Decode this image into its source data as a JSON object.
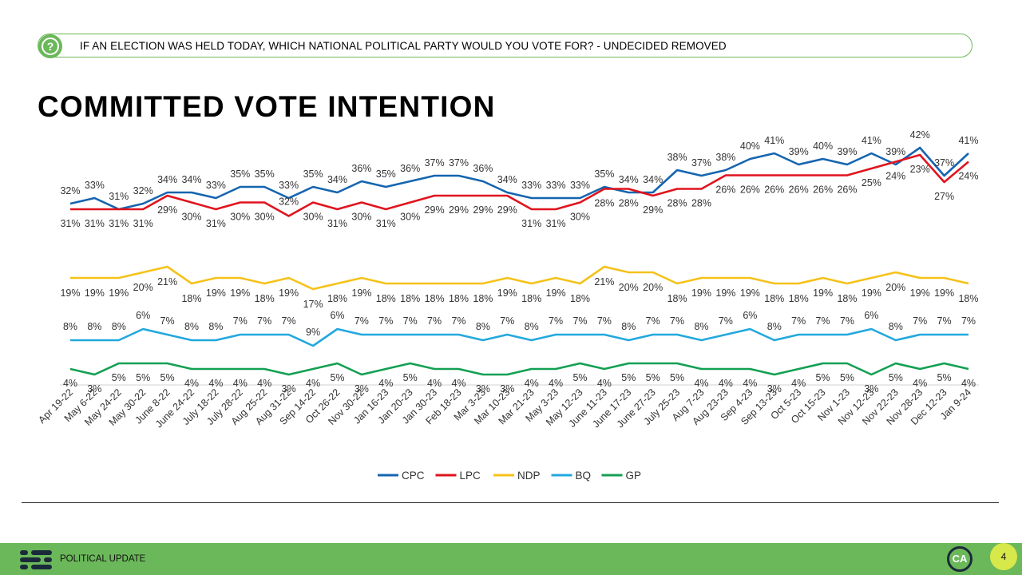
{
  "header": {
    "question_icon": "question-circle-icon",
    "question": "IF AN ELECTION WAS HELD TODAY, WHICH NATIONAL POLITICAL PARTY WOULD YOU VOTE FOR? - UNDECIDED REMOVED"
  },
  "page_title": "COMMITTED VOTE INTENTION",
  "chart_data": {
    "type": "line",
    "title": "COMMITTED VOTE INTENTION",
    "xlabel": "",
    "ylabel": "",
    "grid": false,
    "legend_position": "bottom",
    "value_suffix": "%",
    "categories": [
      "Apr 19-22",
      "May 6-22",
      "May 24-22",
      "May 30-22",
      "June 8-22",
      "June 24-22",
      "July 18-22",
      "July 28-22",
      "Aug 25-22",
      "Aug 31-22",
      "Sep 14-22",
      "Oct 26-22",
      "Nov 30-22",
      "Jan 16-23",
      "Jan 20-23",
      "Jan 30-23",
      "Feb 18-23",
      "Mar 3-23",
      "Mar 10-23",
      "Mar 21-23",
      "May 3-23",
      "May 12-23",
      "June 11-23",
      "June 17-23",
      "June 27-23",
      "July 25-23",
      "Aug 7-23",
      "Aug 23-23",
      "Sep 4-23",
      "Sep 13-23",
      "Oct 5-23",
      "Oct 15-23",
      "Nov 1-23",
      "Nov 12-23",
      "Nov 22-23",
      "Nov 28-23",
      "Dec 12-23",
      "Jan 9-24"
    ],
    "series": [
      {
        "name": "CPC",
        "color": "#1565b0",
        "values": [
          32,
          33,
          31,
          32,
          34,
          34,
          33,
          35,
          35,
          33,
          35,
          34,
          36,
          35,
          36,
          37,
          37,
          36,
          34,
          33,
          33,
          33,
          35,
          34,
          34,
          38,
          37,
          38,
          40,
          41,
          39,
          40,
          39,
          41,
          39,
          42,
          37,
          41
        ]
      },
      {
        "name": "LPC",
        "color": "#e0141e",
        "values": [
          31,
          31,
          31,
          31,
          29,
          30,
          31,
          30,
          30,
          32,
          30,
          31,
          30,
          31,
          30,
          29,
          29,
          29,
          29,
          31,
          31,
          30,
          28,
          28,
          29,
          28,
          28,
          26,
          26,
          26,
          26,
          26,
          26,
          25,
          24,
          23,
          27,
          24
        ]
      },
      {
        "name": "NDP",
        "color": "#f5c21a",
        "values": [
          19,
          19,
          19,
          20,
          21,
          18,
          19,
          19,
          18,
          19,
          17,
          18,
          19,
          18,
          18,
          18,
          18,
          18,
          19,
          18,
          19,
          18,
          21,
          20,
          20,
          18,
          19,
          19,
          19,
          18,
          18,
          19,
          18,
          19,
          20,
          19,
          19,
          18
        ]
      },
      {
        "name": "BQ",
        "color": "#22a8de",
        "values": [
          8,
          8,
          8,
          6,
          7,
          8,
          8,
          7,
          7,
          7,
          9,
          6,
          7,
          7,
          7,
          7,
          7,
          8,
          7,
          8,
          7,
          7,
          7,
          8,
          7,
          7,
          8,
          7,
          6,
          8,
          7,
          7,
          7,
          6,
          8,
          7,
          7,
          7
        ]
      },
      {
        "name": "GP",
        "color": "#13a052",
        "values": [
          4,
          3,
          5,
          5,
          5,
          4,
          4,
          4,
          4,
          3,
          4,
          5,
          3,
          4,
          5,
          4,
          4,
          3,
          3,
          4,
          4,
          5,
          4,
          5,
          5,
          5,
          4,
          4,
          4,
          3,
          4,
          5,
          5,
          3,
          5,
          4,
          5,
          4
        ]
      }
    ]
  },
  "footer": {
    "logo_icon": "brand-bars-icon",
    "label": "POLITICAL UPDATE",
    "brand_logo": "CA",
    "page_number": "4"
  }
}
